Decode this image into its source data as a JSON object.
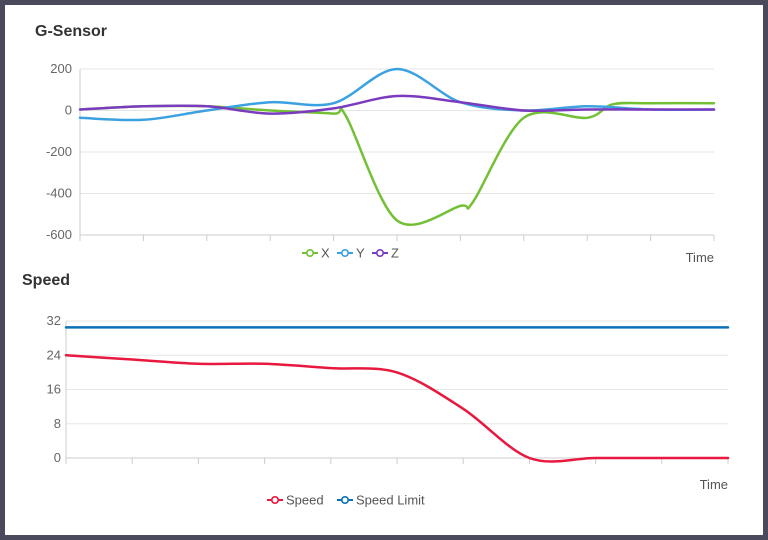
{
  "charts": {
    "gsensor": {
      "title": "G-Sensor",
      "xlabel": "Time",
      "legend": [
        "X",
        "Y",
        "Z"
      ]
    },
    "speed": {
      "title": "Speed",
      "xlabel": "Time",
      "legend": [
        "Speed",
        "Speed Limit"
      ]
    }
  },
  "chart_data": [
    {
      "type": "line",
      "title": "G-Sensor",
      "xlabel": "Time",
      "ylabel": "",
      "ylim": [
        -600,
        200
      ],
      "yticks": [
        200,
        0,
        -200,
        -400,
        -600
      ],
      "xlim": [
        0,
        10
      ],
      "x_tick_count": 11,
      "grid": true,
      "legend_position": "bottom",
      "series": [
        {
          "name": "X",
          "color": "#73c036",
          "x": [
            0,
            1,
            2,
            3,
            4,
            4.2,
            5,
            6,
            6.2,
            7,
            8,
            8.4,
            9,
            10
          ],
          "y": [
            5,
            20,
            20,
            0,
            -15,
            -30,
            -530,
            -460,
            -440,
            -35,
            -35,
            30,
            35,
            35
          ]
        },
        {
          "name": "Y",
          "color": "#3ba1e0",
          "x": [
            0,
            1,
            2,
            3,
            4,
            5,
            6,
            7,
            8,
            9,
            10
          ],
          "y": [
            -35,
            -45,
            0,
            40,
            35,
            200,
            40,
            0,
            20,
            5,
            5
          ]
        },
        {
          "name": "Z",
          "color": "#7b3bbf",
          "x": [
            0,
            1,
            2,
            3,
            4,
            5,
            6,
            7,
            8,
            9,
            10
          ],
          "y": [
            5,
            20,
            20,
            -15,
            10,
            70,
            40,
            0,
            5,
            5,
            5
          ]
        }
      ]
    },
    {
      "type": "line",
      "title": "Speed",
      "xlabel": "Time",
      "ylabel": "",
      "ylim": [
        0,
        32
      ],
      "yticks": [
        32,
        24,
        16,
        8,
        0
      ],
      "xlim": [
        0,
        10
      ],
      "x_tick_count": 11,
      "grid": true,
      "legend_position": "bottom",
      "series": [
        {
          "name": "Speed",
          "color": "#e8183e",
          "x": [
            0,
            1,
            2,
            3,
            4,
            5,
            6,
            7,
            8,
            9,
            10
          ],
          "y": [
            24,
            23,
            22,
            22,
            21,
            20,
            11.5,
            0,
            0,
            0,
            0
          ]
        },
        {
          "name": "Speed Limit",
          "color": "#0b72b5",
          "x": [
            0,
            10
          ],
          "y": [
            30.5,
            30.5
          ]
        }
      ]
    }
  ]
}
